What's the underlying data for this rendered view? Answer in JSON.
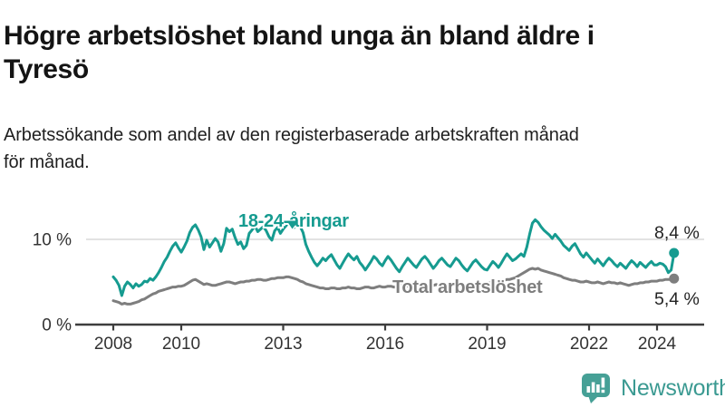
{
  "header": {
    "title_lines": [
      "Högre arbetslöshet bland unga än bland äldre i",
      "Tyresö"
    ],
    "subtitle_lines": [
      "Arbetssökande som andel av den registerbaserade arbetskraften månad",
      "för månad."
    ]
  },
  "chart_data": {
    "type": "line",
    "title": "Högre arbetslöshet bland unga än bland äldre i Tyresö",
    "subtitle": "Arbetssökande som andel av den registerbaserade arbetskraften månad för månad.",
    "x_start_year": 2008,
    "x_frequency": "monthly",
    "x_end": "2024-07",
    "ylim": [
      0,
      13
    ],
    "grid": "single horizontal gridline at 10 %",
    "axis_color": "#3d3d3d",
    "grid_color": "#d9d9d9",
    "label_color": "#333333",
    "y_ticks": [
      {
        "value": 0,
        "label": "0 %",
        "grid": false
      },
      {
        "value": 10,
        "label": "10 %",
        "grid": true
      }
    ],
    "x_ticks": [
      {
        "year": 2008,
        "label": "2008"
      },
      {
        "year": 2010,
        "label": "2010"
      },
      {
        "year": 2013,
        "label": "2013"
      },
      {
        "year": 2016,
        "label": "2016"
      },
      {
        "year": 2019,
        "label": "2019"
      },
      {
        "year": 2022,
        "label": "2022"
      },
      {
        "year": 2024,
        "label": "2024"
      }
    ],
    "series": [
      {
        "name": "18-24-åringar",
        "color": "#169b90",
        "end_label": "8,4 %",
        "last_value": 8.4,
        "values": [
          5.6,
          5.2,
          4.6,
          3.4,
          4.5,
          5.0,
          4.7,
          4.3,
          4.8,
          4.5,
          4.7,
          5.1,
          5.0,
          5.4,
          5.2,
          5.6,
          6.1,
          6.7,
          7.4,
          7.9,
          8.6,
          9.2,
          9.6,
          9.0,
          8.5,
          9.1,
          9.8,
          10.8,
          11.4,
          11.7,
          11.1,
          10.3,
          8.8,
          9.9,
          9.1,
          9.6,
          10.1,
          9.7,
          8.6,
          9.5,
          11.3,
          10.9,
          11.2,
          10.2,
          9.4,
          9.7,
          8.9,
          9.3,
          10.7,
          11.1,
          11.6,
          10.9,
          11.2,
          11.5,
          11.0,
          10.3,
          9.9,
          11.0,
          11.4,
          10.7,
          11.2,
          11.6,
          12.0,
          11.7,
          11.4,
          11.8,
          11.5,
          10.8,
          9.4,
          8.6,
          7.9,
          7.3,
          6.9,
          7.3,
          7.8,
          7.5,
          7.9,
          8.2,
          7.6,
          7.0,
          6.6,
          7.2,
          7.8,
          8.3,
          7.9,
          7.6,
          8.0,
          7.3,
          6.9,
          6.4,
          6.9,
          7.4,
          8.0,
          7.7,
          7.2,
          6.9,
          7.5,
          8.0,
          7.6,
          7.1,
          6.6,
          6.2,
          6.8,
          7.3,
          7.8,
          7.4,
          7.0,
          6.7,
          7.2,
          7.7,
          8.0,
          7.6,
          7.1,
          6.6,
          7.0,
          7.5,
          7.8,
          7.4,
          7.0,
          6.8,
          7.3,
          7.8,
          7.5,
          7.0,
          6.6,
          6.3,
          6.8,
          7.3,
          7.6,
          7.2,
          6.8,
          6.5,
          6.4,
          6.9,
          7.4,
          7.1,
          6.7,
          7.2,
          7.8,
          8.3,
          7.9,
          7.5,
          7.7,
          8.0,
          8.3,
          8.0,
          9.1,
          10.6,
          11.9,
          12.3,
          12.0,
          11.5,
          11.1,
          10.8,
          10.5,
          10.1,
          10.6,
          10.2,
          9.8,
          9.3,
          9.0,
          8.7,
          9.2,
          9.5,
          8.9,
          8.3,
          7.9,
          8.4,
          8.0,
          7.6,
          7.2,
          7.7,
          7.3,
          6.9,
          7.4,
          7.8,
          7.5,
          7.1,
          6.8,
          7.2,
          6.9,
          6.6,
          7.1,
          7.5,
          7.2,
          6.8,
          7.3,
          7.0,
          6.7,
          7.1,
          7.4,
          7.0,
          7.0,
          7.2,
          7.1,
          6.8,
          6.1,
          6.4,
          8.4
        ]
      },
      {
        "name": "Total arbetslöshet",
        "color": "#7e7e7e",
        "end_label": "5,4 %",
        "last_value": 5.4,
        "values": [
          2.8,
          2.7,
          2.6,
          2.4,
          2.5,
          2.4,
          2.4,
          2.5,
          2.6,
          2.7,
          2.9,
          3.0,
          3.2,
          3.4,
          3.6,
          3.7,
          3.9,
          4.0,
          4.1,
          4.2,
          4.3,
          4.4,
          4.4,
          4.5,
          4.5,
          4.6,
          4.8,
          5.0,
          5.2,
          5.3,
          5.1,
          4.9,
          4.7,
          4.8,
          4.7,
          4.6,
          4.6,
          4.7,
          4.8,
          4.9,
          5.0,
          5.0,
          4.9,
          4.8,
          4.9,
          5.0,
          5.0,
          5.1,
          5.1,
          5.2,
          5.2,
          5.3,
          5.3,
          5.2,
          5.2,
          5.3,
          5.4,
          5.4,
          5.5,
          5.5,
          5.5,
          5.6,
          5.6,
          5.5,
          5.4,
          5.3,
          5.1,
          5.0,
          4.8,
          4.7,
          4.6,
          4.5,
          4.4,
          4.3,
          4.3,
          4.2,
          4.2,
          4.3,
          4.3,
          4.2,
          4.2,
          4.3,
          4.3,
          4.4,
          4.3,
          4.3,
          4.2,
          4.2,
          4.3,
          4.4,
          4.4,
          4.3,
          4.3,
          4.4,
          4.5,
          4.4,
          4.4,
          4.5,
          4.5,
          4.4,
          4.4,
          4.5,
          4.6,
          4.6,
          4.5,
          4.5,
          4.6,
          4.7,
          4.6,
          4.6,
          4.5,
          4.5,
          4.6,
          4.6,
          4.7,
          4.6,
          4.6,
          4.7,
          4.7,
          4.6,
          4.6,
          4.5,
          4.5,
          4.6,
          4.6,
          4.7,
          4.7,
          4.8,
          4.8,
          4.7,
          4.7,
          4.8,
          4.8,
          4.9,
          4.9,
          5.0,
          5.0,
          5.1,
          5.2,
          5.3,
          5.3,
          5.4,
          5.5,
          5.7,
          5.9,
          6.1,
          6.3,
          6.5,
          6.6,
          6.5,
          6.6,
          6.4,
          6.3,
          6.2,
          6.1,
          6.0,
          5.9,
          5.8,
          5.7,
          5.5,
          5.4,
          5.3,
          5.2,
          5.2,
          5.1,
          5.0,
          5.0,
          5.1,
          5.0,
          4.9,
          4.9,
          5.0,
          4.9,
          4.8,
          4.9,
          5.0,
          4.9,
          4.9,
          4.8,
          4.9,
          4.8,
          4.7,
          4.6,
          4.7,
          4.8,
          4.8,
          4.9,
          4.9,
          5.0,
          5.0,
          5.1,
          5.1,
          5.1,
          5.2,
          5.2,
          5.3,
          5.3,
          5.3,
          5.4
        ]
      }
    ],
    "legend_position": "inline labels on lines"
  },
  "footer": {
    "brand": "Newsworthy",
    "brand_color": "#3b9a92",
    "icon_color": "#46a096"
  }
}
